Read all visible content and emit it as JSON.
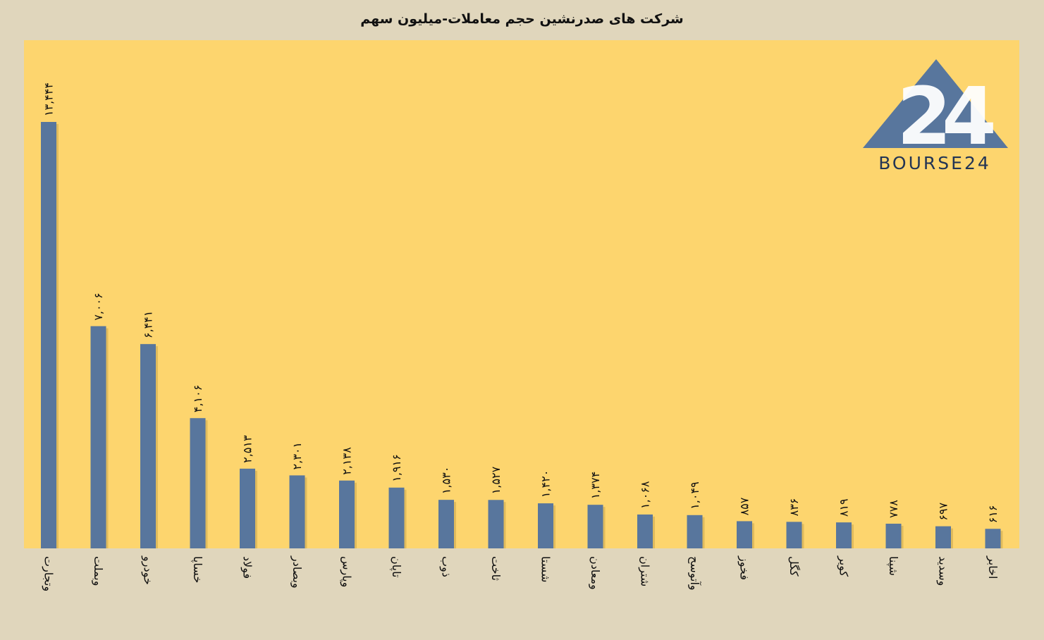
{
  "colors": {
    "background": "#e0d6bc",
    "plot_background": "#fdd56e",
    "bar": "#58769d",
    "logo_blue": "#58769d",
    "logo_text": "#223454"
  },
  "logo": {
    "text": "BOURSE24",
    "numeral": "24"
  },
  "chart_data": {
    "type": "bar",
    "title": "شرکت های صدرنشین حجم معاملات-میلیون سهم",
    "xlabel": "",
    "ylabel": "",
    "ylim": [
      0,
      13444
    ],
    "grid": false,
    "categories": [
      "وتجارت",
      "وبملت",
      "خودرو",
      "خساپا",
      "فولاد",
      "وبصادر",
      "وپارس",
      "تاپان",
      "ذوب",
      "ثاخت",
      "شستا",
      "ومعادن",
      "شتران",
      "وآتوسح",
      "فخوز",
      "کگل",
      "کویر",
      "شپنا",
      "وسدید",
      "اخابر"
    ],
    "values": [
      13444,
      7006,
      6441,
      4106,
      2513,
      2301,
      2138,
      1916,
      1530,
      1527,
      1420,
      1374,
      1068,
      1049,
      857,
      836,
      819,
      778,
      697,
      616
    ],
    "value_labels": [
      "۱۳,۴۴۴",
      "۷,۰۰۶",
      "۶,۴۴۱",
      "۴,۱۰۶",
      "۲,۵۱۳",
      "۲,۳۰۱",
      "۲,۱۳۸",
      "۱,۹۱۶",
      "۱,۵۳۰",
      "۱,۵۲۷",
      "۱,۴۲۰",
      "۱,۳۷۴",
      "۱,۰۶۸",
      "۱,۰۴۹",
      "۸۵۷",
      "۸۳۶",
      "۸۱۹",
      "۷۷۸",
      "۶۹۷",
      "۶۱۶"
    ]
  }
}
